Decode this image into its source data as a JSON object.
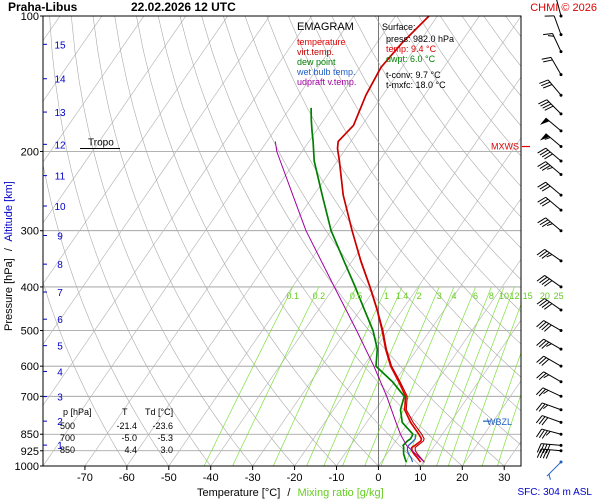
{
  "header": {
    "station": "Praha-Libus",
    "datetime": "22.02.2026 12 UTC",
    "copyright": "CHMI © 2026"
  },
  "colors": {
    "temperature": "#e00000",
    "virt_temp": "#c00000",
    "dew_point": "#008000",
    "wet_bulb": "#1f5fc0",
    "udpraft": "#a000a0",
    "axis_blue": "#0000cc",
    "mixing": "#80e040",
    "isotherm": "#999999",
    "dry_adiabat": "#aaaaaa"
  },
  "chart_data": {
    "type": "line",
    "title": "EMAGRAM",
    "xlabel": "Temperature [°C]",
    "xlabel_sep": "/",
    "xlabel2": "Mixing ratio [g/kg]",
    "ylabel": "Pressure [hPa]",
    "ylabel_sep": "/",
    "ylabel2": "Altitude [km]",
    "x_ticks": [
      "-70",
      "-60",
      "-50",
      "-40",
      "-30",
      "-20",
      "-10",
      "0",
      "10",
      "20",
      "30"
    ],
    "xlim": [
      -80,
      34
    ],
    "y_ticks": [
      "100",
      "200",
      "300",
      "400",
      "500",
      "600",
      "700",
      "850",
      "925",
      "1000"
    ],
    "ylim": [
      1000,
      100
    ],
    "altitude_ticks": [
      "1",
      "2",
      "3",
      "4",
      "5",
      "6",
      "7",
      "8",
      "9",
      "10",
      "11",
      "12",
      "13",
      "14",
      "15"
    ],
    "mixing_ratio_labels": [
      "0.1",
      "0.2",
      "0.5",
      "1",
      "1.4",
      "2",
      "3",
      "4",
      "6",
      "8",
      "10",
      "12",
      "15",
      "20",
      "25"
    ],
    "legend": [
      "temperature",
      "virt.temp.",
      "dew point",
      "wet bulb temp.",
      "udpraft v.temp."
    ],
    "series": [
      {
        "name": "temperature",
        "points": [
          [
            980,
            9.4
          ],
          [
            960,
            8.0
          ],
          [
            940,
            6.5
          ],
          [
            925,
            5.5
          ],
          [
            910,
            4.9
          ],
          [
            900,
            5.3
          ],
          [
            880,
            6.0
          ],
          [
            870,
            5.8
          ],
          [
            850,
            4.4
          ],
          [
            800,
            0.5
          ],
          [
            750,
            -3.0
          ],
          [
            700,
            -5.0
          ],
          [
            650,
            -9.0
          ],
          [
            600,
            -13.5
          ],
          [
            550,
            -17.5
          ],
          [
            500,
            -21.4
          ],
          [
            450,
            -26.0
          ],
          [
            400,
            -31.5
          ],
          [
            350,
            -38.0
          ],
          [
            300,
            -45.0
          ],
          [
            250,
            -53.0
          ],
          [
            210,
            -59.5
          ],
          [
            197,
            -62.0
          ],
          [
            190,
            -63.0
          ],
          [
            175,
            -62.0
          ],
          [
            150,
            -64.0
          ],
          [
            130,
            -65.0
          ],
          [
            115,
            -64.0
          ],
          [
            100,
            -62.0
          ]
        ]
      },
      {
        "name": "virt.temp.",
        "points": [
          [
            980,
            10.3
          ],
          [
            960,
            8.8
          ],
          [
            940,
            7.3
          ],
          [
            925,
            6.3
          ],
          [
            910,
            5.7
          ],
          [
            900,
            6.0
          ],
          [
            880,
            6.6
          ],
          [
            870,
            6.4
          ],
          [
            850,
            5.1
          ],
          [
            800,
            1.1
          ],
          [
            750,
            -2.6
          ],
          [
            700,
            -4.6
          ],
          [
            650,
            -8.7
          ],
          [
            600,
            -13.3
          ],
          [
            550,
            -17.3
          ],
          [
            500,
            -21.2
          ],
          [
            450,
            -25.9
          ],
          [
            400,
            -31.4
          ],
          [
            350,
            -37.9
          ],
          [
            300,
            -45.0
          ],
          [
            250,
            -53.0
          ],
          [
            210,
            -59.5
          ],
          [
            197,
            -62.0
          ],
          [
            190,
            -63.0
          ],
          [
            175,
            -62.0
          ],
          [
            150,
            -64.0
          ],
          [
            130,
            -65.0
          ],
          [
            115,
            -64.0
          ],
          [
            100,
            -62.0
          ]
        ]
      },
      {
        "name": "dew point",
        "points": [
          [
            980,
            6.0
          ],
          [
            960,
            5.0
          ],
          [
            940,
            4.0
          ],
          [
            925,
            3.5
          ],
          [
            910,
            3.0
          ],
          [
            900,
            2.5
          ],
          [
            880,
            2.8
          ],
          [
            870,
            3.2
          ],
          [
            850,
            3.0
          ],
          [
            800,
            -1.5
          ],
          [
            750,
            -4.0
          ],
          [
            700,
            -5.3
          ],
          [
            650,
            -10.5
          ],
          [
            600,
            -17.0
          ],
          [
            550,
            -19.5
          ],
          [
            500,
            -23.6
          ],
          [
            450,
            -29.0
          ],
          [
            400,
            -35.0
          ],
          [
            350,
            -42.0
          ],
          [
            300,
            -50.0
          ],
          [
            250,
            -58.0
          ],
          [
            210,
            -65.5
          ],
          [
            190,
            -69.0
          ],
          [
            180,
            -71.0
          ],
          [
            170,
            -73.0
          ],
          [
            160,
            -75.0
          ]
        ]
      },
      {
        "name": "wet bulb temp.",
        "points": [
          [
            980,
            7.5
          ],
          [
            960,
            6.5
          ],
          [
            940,
            5.2
          ],
          [
            925,
            4.4
          ],
          [
            910,
            3.9
          ],
          [
            900,
            3.8
          ],
          [
            880,
            4.2
          ],
          [
            870,
            4.3
          ],
          [
            850,
            3.6
          ]
        ]
      },
      {
        "name": "udpraft v.temp.",
        "points": [
          [
            980,
            10.3
          ],
          [
            900,
            3.3
          ],
          [
            850,
            0.0
          ],
          [
            800,
            -3.0
          ],
          [
            700,
            -9.5
          ],
          [
            600,
            -17.5
          ],
          [
            500,
            -27.5
          ],
          [
            400,
            -40.0
          ],
          [
            300,
            -56.0
          ],
          [
            250,
            -65.0
          ],
          [
            200,
            -76.0
          ],
          [
            190,
            -78.0
          ]
        ]
      }
    ],
    "levels": [
      {
        "name": "Tropo",
        "p": 197
      },
      {
        "name": "MXWS",
        "p": 195
      },
      {
        "name": "WBZL",
        "p": 795
      }
    ],
    "table": {
      "headers": [
        "p [hPa]",
        "T",
        "Td [°C]"
      ],
      "rows": [
        [
          "500",
          "-21.4",
          "-23.6"
        ],
        [
          "700",
          "-5.0",
          "-5.3"
        ],
        [
          "850",
          "4.4",
          "3.0"
        ]
      ]
    },
    "surface": {
      "title": "Surface:",
      "press": "press: 982.0 hPa",
      "temp": "temp: 9.4 °C",
      "dwpt": "dwpt: 6.0 °C",
      "tconv": "t-conv: 9.7 °C",
      "tmxfc": "t-mxfc: 18.0 °C"
    },
    "sfc_label": "SFC: 304 m ASL",
    "winds": [
      {
        "p": 980,
        "dir": 225,
        "speed": 5
      },
      {
        "p": 925,
        "dir": 275,
        "speed": 40
      },
      {
        "p": 900,
        "dir": 275,
        "speed": 40
      },
      {
        "p": 850,
        "dir": 285,
        "speed": 35
      },
      {
        "p": 800,
        "dir": 290,
        "speed": 30
      },
      {
        "p": 750,
        "dir": 290,
        "speed": 25
      },
      {
        "p": 700,
        "dir": 295,
        "speed": 25
      },
      {
        "p": 650,
        "dir": 300,
        "speed": 25
      },
      {
        "p": 600,
        "dir": 300,
        "speed": 30
      },
      {
        "p": 550,
        "dir": 300,
        "speed": 35
      },
      {
        "p": 500,
        "dir": 300,
        "speed": 40
      },
      {
        "p": 450,
        "dir": 305,
        "speed": 40
      },
      {
        "p": 400,
        "dir": 305,
        "speed": 40
      },
      {
        "p": 350,
        "dir": 305,
        "speed": 35
      },
      {
        "p": 300,
        "dir": 310,
        "speed": 35
      },
      {
        "p": 270,
        "dir": 310,
        "speed": 30
      },
      {
        "p": 250,
        "dir": 310,
        "speed": 30
      },
      {
        "p": 225,
        "dir": 310,
        "speed": 35
      },
      {
        "p": 210,
        "dir": 310,
        "speed": 40
      },
      {
        "p": 195,
        "dir": 310,
        "speed": 55
      },
      {
        "p": 180,
        "dir": 310,
        "speed": 50
      },
      {
        "p": 165,
        "dir": 315,
        "speed": 40
      },
      {
        "p": 150,
        "dir": 320,
        "speed": 30
      },
      {
        "p": 135,
        "dir": 330,
        "speed": 20
      },
      {
        "p": 120,
        "dir": 335,
        "speed": 15
      },
      {
        "p": 110,
        "dir": 340,
        "speed": 10
      },
      {
        "p": 100,
        "dir": 345,
        "speed": 10
      }
    ]
  }
}
